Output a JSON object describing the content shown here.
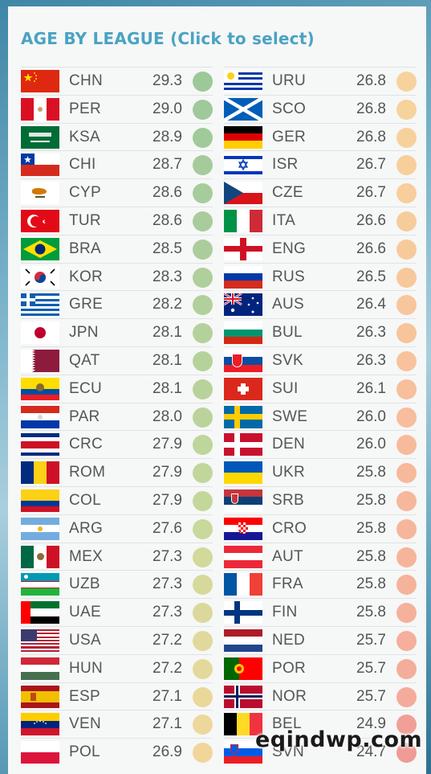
{
  "title": "AGE BY LEAGUE (Click to select)",
  "watermark": "eqindwp.com",
  "left": [
    {
      "code": "CHN",
      "value": "29.3",
      "dot": "#9cc89a",
      "flag": "chn-flag"
    },
    {
      "code": "PER",
      "value": "29.0",
      "dot": "#9fc99b",
      "flag": "per-flag"
    },
    {
      "code": "KSA",
      "value": "28.9",
      "dot": "#a1ca9b",
      "flag": "ksa-flag"
    },
    {
      "code": "CHI",
      "value": "28.7",
      "dot": "#a5cb9b",
      "flag": "chi-flag"
    },
    {
      "code": "CYP",
      "value": "28.6",
      "dot": "#a7cc9b",
      "flag": "cyp-flag"
    },
    {
      "code": "TUR",
      "value": "28.6",
      "dot": "#a8cc9b",
      "flag": "tur-flag"
    },
    {
      "code": "BRA",
      "value": "28.5",
      "dot": "#abcd9b",
      "flag": "bra-flag"
    },
    {
      "code": "KOR",
      "value": "28.3",
      "dot": "#afcf9b",
      "flag": "kor-flag"
    },
    {
      "code": "GRE",
      "value": "28.2",
      "dot": "#b2d09b",
      "flag": "gre-flag"
    },
    {
      "code": "JPN",
      "value": "28.1",
      "dot": "#b5d19b",
      "flag": "jpn-flag"
    },
    {
      "code": "QAT",
      "value": "28.1",
      "dot": "#b6d29b",
      "flag": "qat-flag"
    },
    {
      "code": "ECU",
      "value": "28.1",
      "dot": "#b8d29b",
      "flag": "ecu-flag"
    },
    {
      "code": "PAR",
      "value": "28.0",
      "dot": "#bbd39b",
      "flag": "par-flag"
    },
    {
      "code": "CRC",
      "value": "27.9",
      "dot": "#bed59b",
      "flag": "crc-flag"
    },
    {
      "code": "ROM",
      "value": "27.9",
      "dot": "#c1d69b",
      "flag": "rom-flag"
    },
    {
      "code": "COL",
      "value": "27.9",
      "dot": "#c4d79b",
      "flag": "col-flag"
    },
    {
      "code": "ARG",
      "value": "27.6",
      "dot": "#c9d89b",
      "flag": "arg-flag"
    },
    {
      "code": "MEX",
      "value": "27.3",
      "dot": "#d2d99b",
      "flag": "mex-flag"
    },
    {
      "code": "UZB",
      "value": "27.3",
      "dot": "#d6d99b",
      "flag": "uzb-flag"
    },
    {
      "code": "UAE",
      "value": "27.3",
      "dot": "#dad99b",
      "flag": "uae-flag"
    },
    {
      "code": "USA",
      "value": "27.2",
      "dot": "#e0d99b",
      "flag": "usa-flag"
    },
    {
      "code": "HUN",
      "value": "27.2",
      "dot": "#e4d99b",
      "flag": "hun-flag"
    },
    {
      "code": "ESP",
      "value": "27.1",
      "dot": "#ead89b",
      "flag": "esp-flag"
    },
    {
      "code": "VEN",
      "value": "27.1",
      "dot": "#eed79b",
      "flag": "ven-flag"
    },
    {
      "code": "POL",
      "value": "26.9",
      "dot": "#f2d59b",
      "flag": "pol-flag"
    }
  ],
  "right": [
    {
      "code": "URU",
      "value": "26.8",
      "dot": "#f6d39c",
      "flag": "uru-flag"
    },
    {
      "code": "SCO",
      "value": "26.8",
      "dot": "#f6d29c",
      "flag": "sco-flag"
    },
    {
      "code": "GER",
      "value": "26.8",
      "dot": "#f7d19c",
      "flag": "ger-flag"
    },
    {
      "code": "ISR",
      "value": "26.7",
      "dot": "#f7cf9c",
      "flag": "isr-flag"
    },
    {
      "code": "CZE",
      "value": "26.7",
      "dot": "#f7ce9c",
      "flag": "cze-flag"
    },
    {
      "code": "ITA",
      "value": "26.6",
      "dot": "#f7cc9c",
      "flag": "ita-flag"
    },
    {
      "code": "ENG",
      "value": "26.6",
      "dot": "#f7ca9c",
      "flag": "eng-flag"
    },
    {
      "code": "RUS",
      "value": "26.5",
      "dot": "#f7c89c",
      "flag": "rus-flag"
    },
    {
      "code": "AUS",
      "value": "26.4",
      "dot": "#f7c69c",
      "flag": "aus-flag"
    },
    {
      "code": "BUL",
      "value": "26.3",
      "dot": "#f7c49c",
      "flag": "bul-flag"
    },
    {
      "code": "SVK",
      "value": "26.3",
      "dot": "#f7c29c",
      "flag": "svk-flag"
    },
    {
      "code": "SUI",
      "value": "26.1",
      "dot": "#f7bf9c",
      "flag": "sui-flag"
    },
    {
      "code": "SWE",
      "value": "26.0",
      "dot": "#f7bd9c",
      "flag": "swe-flag"
    },
    {
      "code": "DEN",
      "value": "26.0",
      "dot": "#f7bb9c",
      "flag": "den-flag"
    },
    {
      "code": "UKR",
      "value": "25.8",
      "dot": "#f6b99b",
      "flag": "ukr-flag"
    },
    {
      "code": "SRB",
      "value": "25.8",
      "dot": "#f6b79b",
      "flag": "srb-flag"
    },
    {
      "code": "CRO",
      "value": "25.8",
      "dot": "#f6b69b",
      "flag": "cro-flag"
    },
    {
      "code": "AUT",
      "value": "25.8",
      "dot": "#f6b49b",
      "flag": "aut-flag"
    },
    {
      "code": "FRA",
      "value": "25.8",
      "dot": "#f5b39b",
      "flag": "fra-flag"
    },
    {
      "code": "FIN",
      "value": "25.8",
      "dot": "#f5b19b",
      "flag": "fin-flag"
    },
    {
      "code": "NED",
      "value": "25.7",
      "dot": "#f5af9b",
      "flag": "ned-flag"
    },
    {
      "code": "POR",
      "value": "25.7",
      "dot": "#f4ad9b",
      "flag": "por-flag"
    },
    {
      "code": "NOR",
      "value": "25.7",
      "dot": "#f4ab9b",
      "flag": "nor-flag"
    },
    {
      "code": "BEL",
      "value": "24.9",
      "dot": "#f0a097",
      "flag": "bel-flag"
    },
    {
      "code": "SVN",
      "value": "24.7",
      "dot": "#ee9c95",
      "flag": "svn-flag"
    }
  ]
}
